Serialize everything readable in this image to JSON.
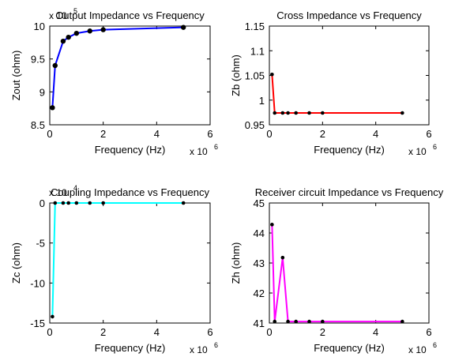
{
  "figure_background": "#ffffff",
  "chart_data": [
    {
      "type": "line",
      "title": "Output Impedance vs Frequency",
      "xlabel": "Frequency (Hz)",
      "ylabel": "Zout (ohm)",
      "x_multiplier": {
        "base": "x 10",
        "exp": "6"
      },
      "y_multiplier": {
        "base": "x 10",
        "exp": "5"
      },
      "xlim": [
        0,
        6
      ],
      "ylim": [
        8.5,
        10
      ],
      "xticks": [
        0,
        2,
        4,
        6
      ],
      "yticks": [
        8.5,
        9,
        9.5,
        10
      ],
      "ytick_labels": [
        "8.5",
        "9",
        "9.5",
        "10"
      ],
      "grid": false,
      "series": [
        {
          "x": [
            0.1,
            0.2,
            0.5,
            0.7,
            1.0,
            1.5,
            2.0,
            5.0
          ],
          "y": [
            8.76,
            9.4,
            9.77,
            9.83,
            9.89,
            9.925,
            9.945,
            9.98
          ],
          "color": "#0000ff",
          "line_width": 2,
          "marker": "dot",
          "marker_color": "#000000"
        }
      ]
    },
    {
      "type": "line",
      "title": "Cross Impedance vs Frequency",
      "xlabel": "Frequency (Hz)",
      "ylabel": "Zb (ohm)",
      "x_multiplier": {
        "base": "x 10",
        "exp": "6"
      },
      "xlim": [
        0,
        6
      ],
      "ylim": [
        0.95,
        1.15
      ],
      "xticks": [
        0,
        2,
        4,
        6
      ],
      "yticks": [
        0.95,
        1.0,
        1.05,
        1.1,
        1.15
      ],
      "ytick_labels": [
        "0.95",
        "1",
        "1.05",
        "1.1",
        "1.15"
      ],
      "grid": false,
      "series": [
        {
          "x": [
            0.1,
            0.2,
            0.5,
            0.7,
            1.0,
            1.5,
            2.0,
            5.0
          ],
          "y": [
            1.052,
            0.974,
            0.974,
            0.974,
            0.974,
            0.974,
            0.974,
            0.974
          ],
          "color": "#ff0000",
          "line_width": 2,
          "marker": "dot",
          "marker_color": "#000000"
        }
      ]
    },
    {
      "type": "line",
      "title": "Coupling Impedance vs Frequency",
      "xlabel": "Frequency (Hz)",
      "ylabel": "Zc (ohm)",
      "x_multiplier": {
        "base": "x 10",
        "exp": "6"
      },
      "y_multiplier": {
        "base": "x 10",
        "exp": "4"
      },
      "xlim": [
        0,
        6
      ],
      "ylim": [
        -15,
        0
      ],
      "xticks": [
        0,
        2,
        4,
        6
      ],
      "yticks": [
        -15,
        -10,
        -5,
        0
      ],
      "ytick_labels": [
        "-15",
        "-10",
        "-5",
        "0"
      ],
      "grid": false,
      "series": [
        {
          "x": [
            0.1,
            0.2,
            0.5,
            0.7,
            1.0,
            1.5,
            2.0,
            5.0
          ],
          "y": [
            -14.2,
            0,
            0,
            0,
            0,
            0,
            0,
            0
          ],
          "color": "#00ffff",
          "line_width": 2,
          "marker": "dot",
          "marker_color": "#000000"
        }
      ]
    },
    {
      "type": "line",
      "title": "Receiver circuit Impedance vs Frequency",
      "xlabel": "Frequency (Hz)",
      "ylabel": "Zh (ohm)",
      "x_multiplier": {
        "base": "x 10",
        "exp": "6"
      },
      "xlim": [
        0,
        6
      ],
      "ylim": [
        41,
        45
      ],
      "xticks": [
        0,
        2,
        4,
        6
      ],
      "yticks": [
        41,
        42,
        43,
        44,
        45
      ],
      "ytick_labels": [
        "41",
        "42",
        "43",
        "44",
        "45"
      ],
      "grid": false,
      "series": [
        {
          "x": [
            0.1,
            0.2,
            0.5,
            0.7,
            1.0,
            1.5,
            2.0,
            5.0
          ],
          "y": [
            44.28,
            41.05,
            43.18,
            41.05,
            41.05,
            41.05,
            41.05,
            41.05
          ],
          "color": "#ff00ff",
          "line_width": 2,
          "marker": "dot",
          "marker_color": "#000000"
        }
      ]
    }
  ]
}
